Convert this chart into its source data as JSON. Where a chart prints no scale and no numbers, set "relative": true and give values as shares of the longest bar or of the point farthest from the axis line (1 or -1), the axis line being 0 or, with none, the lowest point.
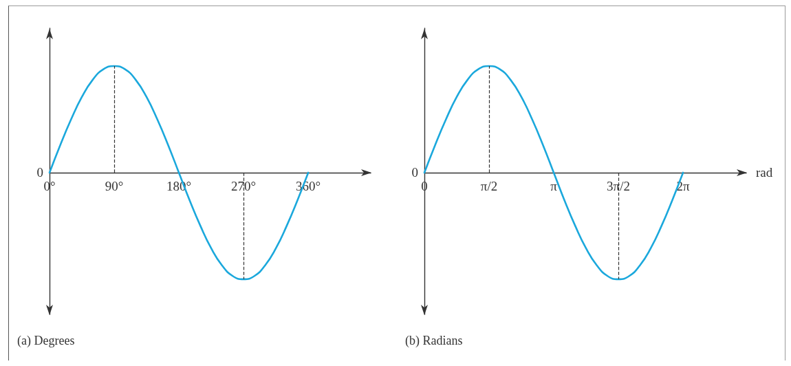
{
  "chart_data": [
    {
      "type": "line",
      "title": "(a) Degrees",
      "relative": true,
      "x": [
        0,
        15,
        30,
        45,
        60,
        75,
        90,
        105,
        120,
        135,
        150,
        165,
        180,
        195,
        210,
        225,
        240,
        255,
        270,
        285,
        300,
        315,
        330,
        345,
        360
      ],
      "series": [
        {
          "color": "#1ba8dc",
          "values": [
            0,
            0.26,
            0.5,
            0.71,
            0.87,
            0.97,
            1,
            0.97,
            0.87,
            0.71,
            0.5,
            0.26,
            0,
            -0.26,
            -0.5,
            -0.71,
            -0.87,
            -0.97,
            -1,
            -0.97,
            -0.87,
            -0.71,
            -0.5,
            -0.26,
            0
          ]
        }
      ],
      "xlim": [
        0,
        447
      ],
      "xticks": [
        {
          "value": 0,
          "label": "0°"
        },
        {
          "value": 90,
          "label": "90°"
        },
        {
          "value": 180,
          "label": "180°"
        },
        {
          "value": 270,
          "label": "270°"
        },
        {
          "value": 360,
          "label": "360°"
        }
      ],
      "ref_lines": [
        {
          "axis": "x",
          "value": 90,
          "color": "#333333",
          "line_style": "dashed"
        },
        {
          "axis": "x",
          "value": 270,
          "color": "#333333",
          "line_style": "dashed"
        }
      ],
      "annotations": [
        {
          "text": "0",
          "x": 0,
          "y": 0
        }
      ],
      "tick_labels": "x",
      "grid": false,
      "marker": "none",
      "line_style": "solid"
    },
    {
      "type": "line",
      "title": "(b) Radians",
      "xlabel": "rad",
      "relative": true,
      "x": [
        0,
        0.262,
        0.524,
        0.785,
        1.047,
        1.309,
        1.571,
        1.833,
        2.094,
        2.356,
        2.618,
        2.88,
        3.142,
        3.403,
        3.665,
        3.927,
        4.189,
        4.451,
        4.712,
        4.974,
        5.236,
        5.498,
        5.76,
        6.021,
        6.283
      ],
      "series": [
        {
          "color": "#1ba8dc",
          "values": [
            0,
            0.26,
            0.5,
            0.71,
            0.87,
            0.97,
            1,
            0.97,
            0.87,
            0.71,
            0.5,
            0.26,
            0,
            -0.26,
            -0.5,
            -0.71,
            -0.87,
            -0.97,
            -1,
            -0.97,
            -0.87,
            -0.71,
            -0.5,
            -0.26,
            0
          ]
        }
      ],
      "xlim": [
        0,
        7.82
      ],
      "xticks": [
        {
          "value": 0,
          "label": "0"
        },
        {
          "value": 1.571,
          "label": "π/2"
        },
        {
          "value": 3.142,
          "label": "π"
        },
        {
          "value": 4.712,
          "label": "3π/2"
        },
        {
          "value": 6.283,
          "label": "2π"
        }
      ],
      "ref_lines": [
        {
          "axis": "x",
          "value": 1.571,
          "color": "#333333",
          "line_style": "dashed"
        },
        {
          "axis": "x",
          "value": 4.712,
          "color": "#333333",
          "line_style": "dashed"
        }
      ],
      "annotations": [
        {
          "text": "0",
          "x": 0,
          "y": 0
        }
      ],
      "tick_labels": "x",
      "grid": false,
      "marker": "none",
      "line_style": "solid"
    }
  ]
}
